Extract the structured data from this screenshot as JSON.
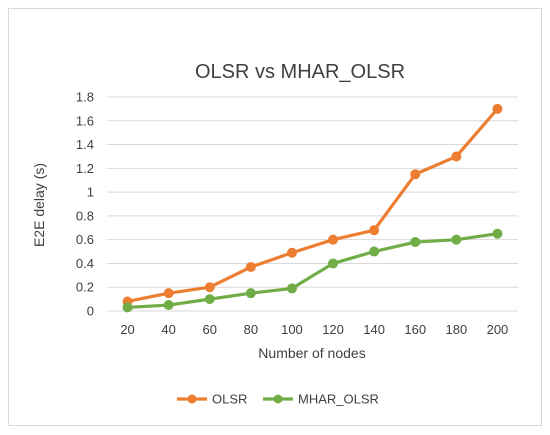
{
  "chart_data": {
    "type": "line",
    "title": "OLSR vs MHAR_OLSR",
    "xlabel": "Number of nodes",
    "ylabel": "E2E delay (s)",
    "categories": [
      "20",
      "40",
      "60",
      "80",
      "100",
      "120",
      "140",
      "160",
      "180",
      "200"
    ],
    "ylim": [
      0,
      1.8
    ],
    "yticks": [
      "0",
      "0.2",
      "0.4",
      "0.6",
      "0.8",
      "1",
      "1.2",
      "1.4",
      "1.6",
      "1.8"
    ],
    "grid": "horizontal",
    "legend_position": "bottom",
    "series": [
      {
        "name": "OLSR",
        "color": "#ED7D31",
        "values": [
          0.08,
          0.15,
          0.2,
          0.37,
          0.49,
          0.6,
          0.68,
          1.15,
          1.3,
          1.7
        ]
      },
      {
        "name": "MHAR_OLSR",
        "color": "#70AD47",
        "values": [
          0.03,
          0.05,
          0.1,
          0.15,
          0.19,
          0.4,
          0.5,
          0.58,
          0.6,
          0.65
        ]
      }
    ]
  }
}
